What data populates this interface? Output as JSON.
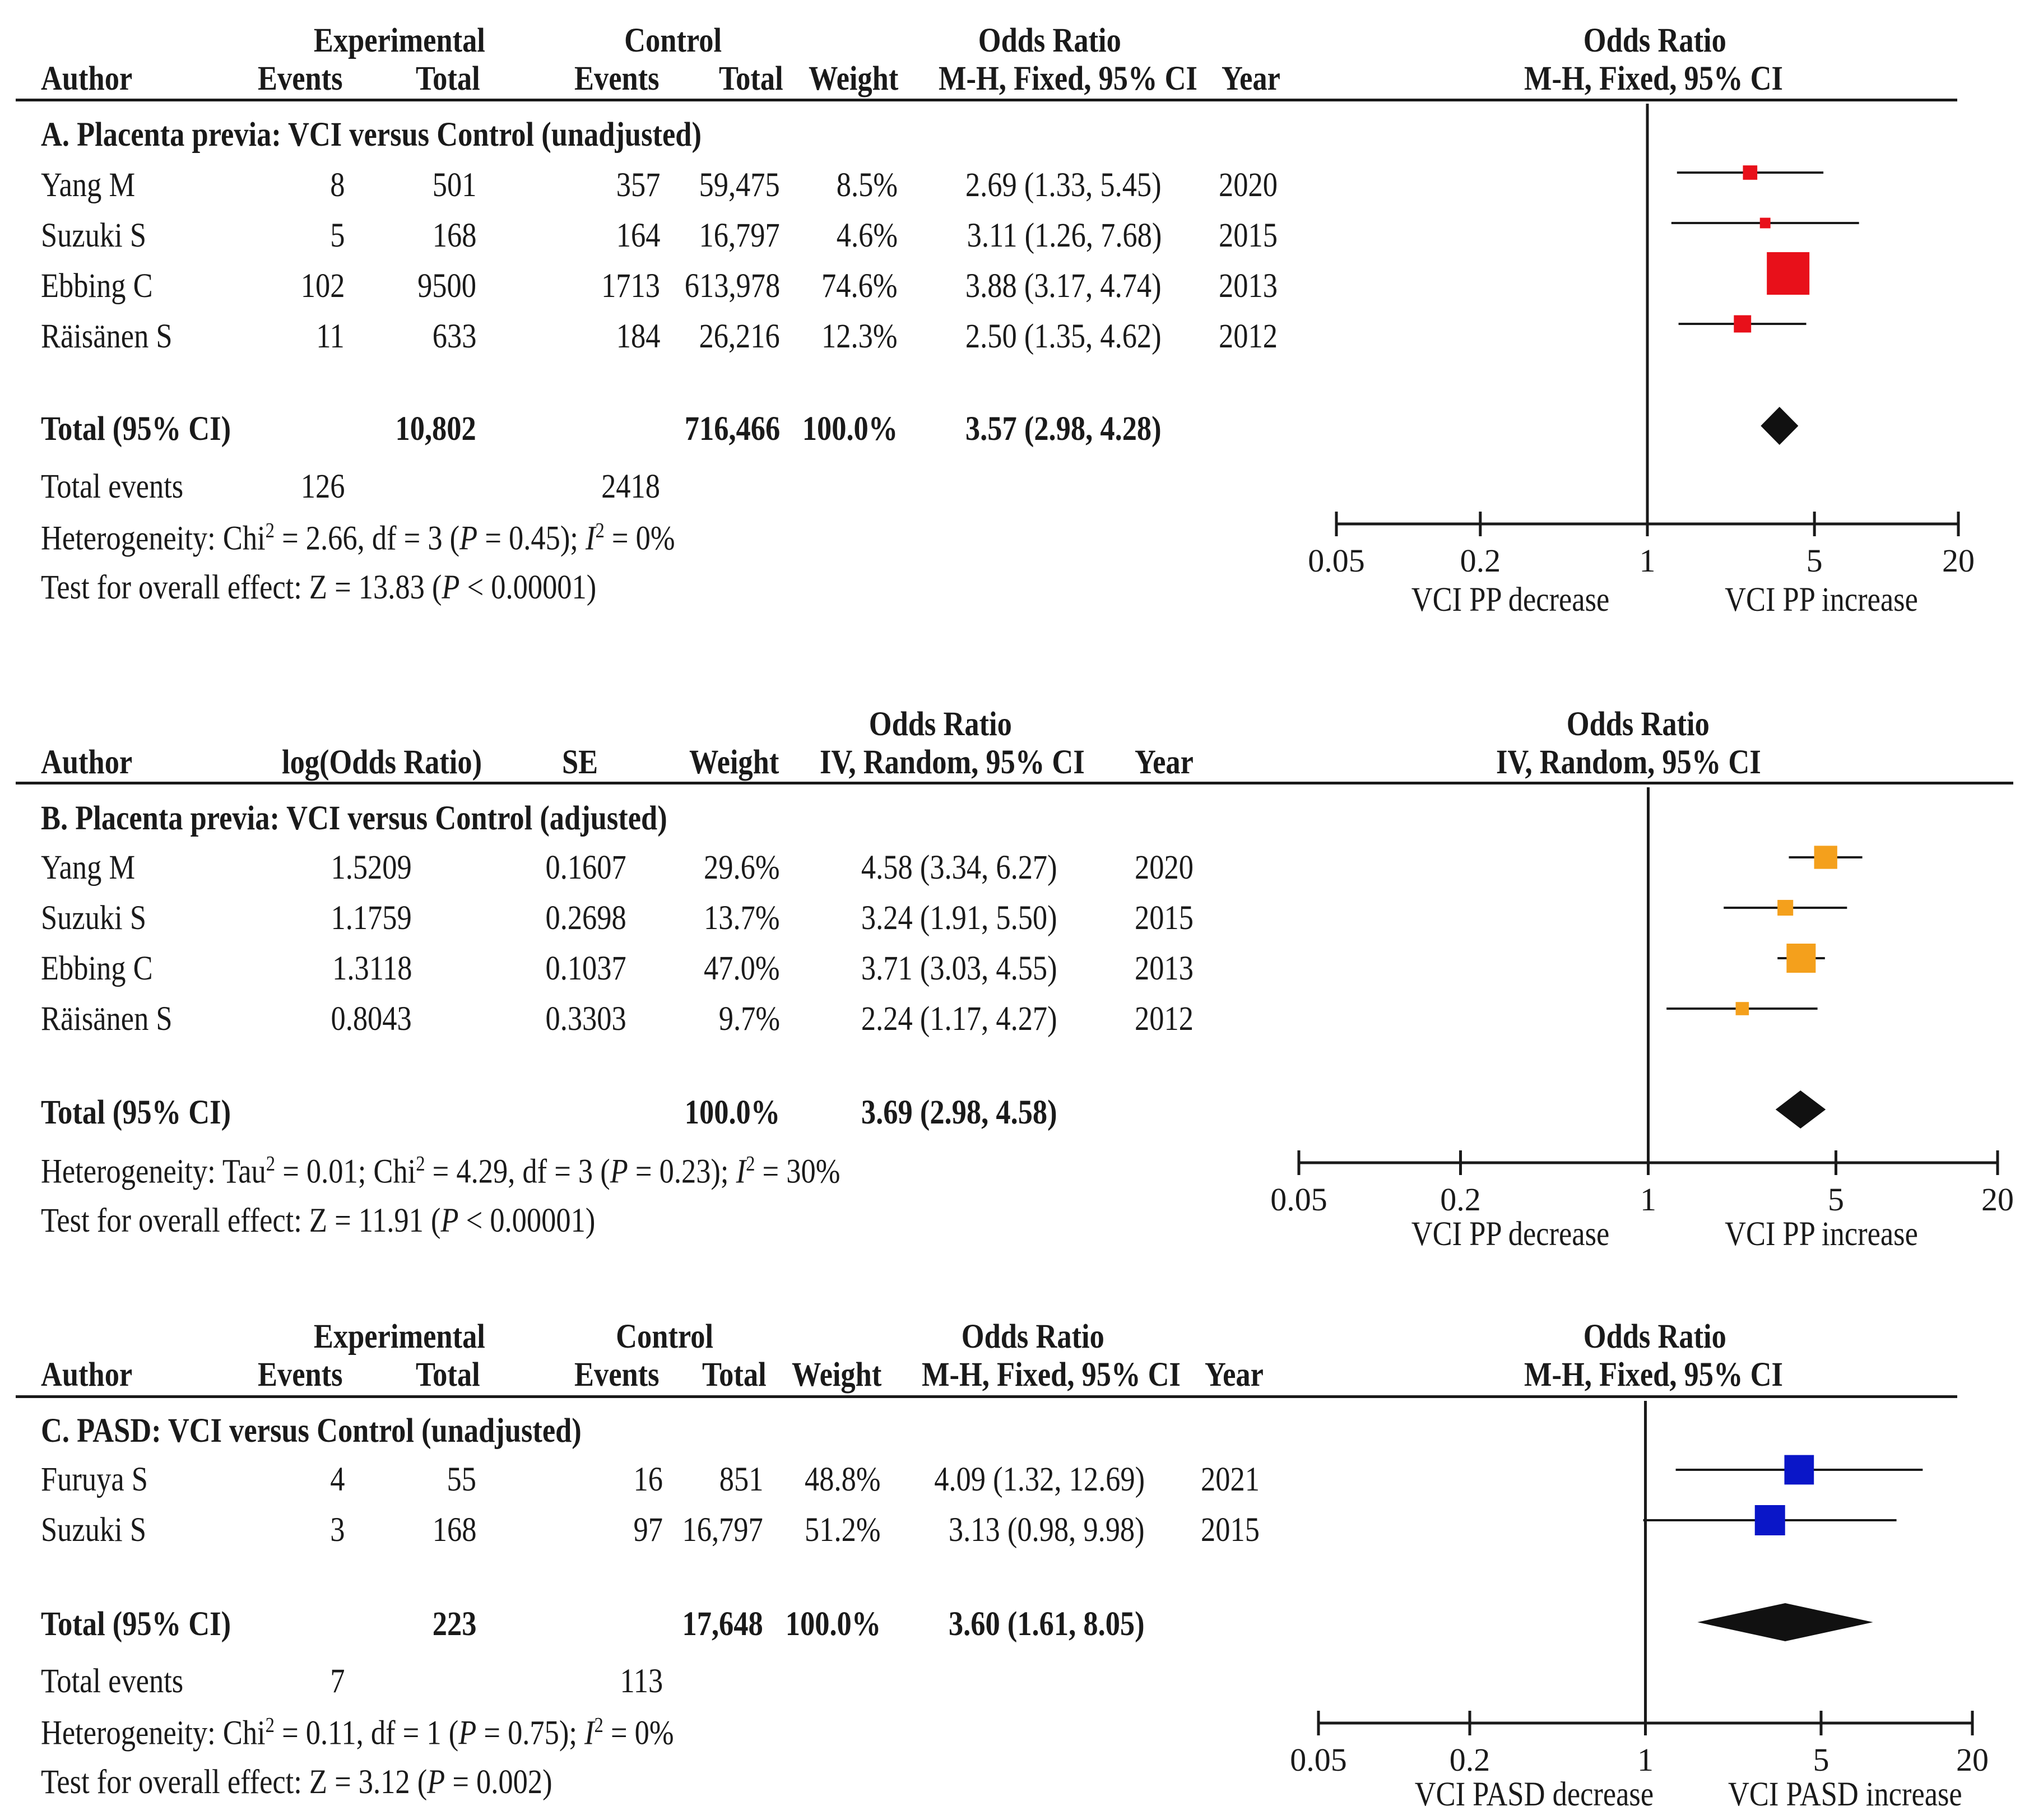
{
  "chart_data": [
    {
      "type": "forest",
      "id": "A",
      "subgroup_title": "A. Placenta previa: VCI versus Control (unadjusted)",
      "columns": {
        "author": "Author",
        "experimental": "Experimental",
        "control": "Control",
        "events": "Events",
        "total": "Total",
        "weight": "Weight",
        "or_top": "Odds Ratio",
        "or_bottom": "M-H, Fixed, 95% CI",
        "year": "Year"
      },
      "plot_header_top": "Odds Ratio",
      "plot_header_bottom": "M-H, Fixed, 95% CI",
      "color": "#e8101a",
      "studies": [
        {
          "author": "Yang M",
          "exp_events": "8",
          "exp_total": "501",
          "ctrl_events": "357",
          "ctrl_total": "59,475",
          "weight_label": "8.5%",
          "or_label": "2.69 (1.33, 5.45)",
          "year": "2020",
          "or": 2.69,
          "lo": 1.33,
          "hi": 5.45,
          "weight": 8.5
        },
        {
          "author": "Suzuki S",
          "exp_events": "5",
          "exp_total": "168",
          "ctrl_events": "164",
          "ctrl_total": "16,797",
          "weight_label": "4.6%",
          "or_label": "3.11 (1.26, 7.68)",
          "year": "2015",
          "or": 3.11,
          "lo": 1.26,
          "hi": 7.68,
          "weight": 4.6
        },
        {
          "author": "Ebbing C",
          "exp_events": "102",
          "exp_total": "9500",
          "ctrl_events": "1713",
          "ctrl_total": "613,978",
          "weight_label": "74.6%",
          "or_label": "3.88 (3.17, 4.74)",
          "year": "2013",
          "or": 3.88,
          "lo": 3.17,
          "hi": 4.74,
          "weight": 74.6
        },
        {
          "author": "Räisänen S",
          "exp_events": "11",
          "exp_total": "633",
          "ctrl_events": "184",
          "ctrl_total": "26,216",
          "weight_label": "12.3%",
          "or_label": "2.50 (1.35, 4.62)",
          "year": "2012",
          "or": 2.5,
          "lo": 1.35,
          "hi": 4.62,
          "weight": 12.3
        }
      ],
      "total": {
        "label": "Total (95% CI)",
        "exp_total": "10,802",
        "ctrl_total": "716,466",
        "weight": "100.0%",
        "or_label": "3.57 (2.98, 4.28)",
        "or": 3.57,
        "lo": 2.98,
        "hi": 4.28
      },
      "total_events": {
        "label": "Total events",
        "exp": "126",
        "ctrl": "2418"
      },
      "heterogeneity": {
        "prefix": "Heterogeneity: Chi",
        "sup": "2",
        "mid": " = 2.66, df = 3 (",
        "p_label": "P",
        "mid2": " = 0.45); ",
        "i_label": "I",
        "i_sup": "2",
        "end": " = 0%"
      },
      "overall": {
        "prefix": "Test for overall effect: Z = 13.83 (",
        "p_label": "P",
        "end": " < 0.00001)"
      },
      "axis": {
        "ticks": [
          0.05,
          0.2,
          1,
          5,
          20
        ],
        "tick_labels": [
          "0.05",
          "0.2",
          "1",
          "5",
          "20"
        ],
        "xmin": 0.05,
        "xmax": 20,
        "scale": "log"
      },
      "left_label": "VCI PP decrease",
      "right_label": "VCI PP increase"
    },
    {
      "type": "forest",
      "id": "B",
      "subgroup_title": "B. Placenta previa: VCI versus Control (adjusted)",
      "columns": {
        "author": "Author",
        "log_or": "log(Odds Ratio)",
        "se": "SE",
        "weight": "Weight",
        "or_top": "Odds Ratio",
        "or_bottom": "IV, Random, 95% CI",
        "year": "Year"
      },
      "plot_header_top": "Odds Ratio",
      "plot_header_bottom": "IV, Random, 95% CI",
      "color": "#f4a01c",
      "studies": [
        {
          "author": "Yang M",
          "log_or": "1.5209",
          "se": "0.1607",
          "weight_label": "29.6%",
          "or_label": "4.58 (3.34, 6.27)",
          "year": "2020",
          "or": 4.58,
          "lo": 3.34,
          "hi": 6.27,
          "weight": 29.6
        },
        {
          "author": "Suzuki S",
          "log_or": "1.1759",
          "se": "0.2698",
          "weight_label": "13.7%",
          "or_label": "3.24 (1.91, 5.50)",
          "year": "2015",
          "or": 3.24,
          "lo": 1.91,
          "hi": 5.5,
          "weight": 13.7
        },
        {
          "author": "Ebbing C",
          "log_or": "1.3118",
          "se": "0.1037",
          "weight_label": "47.0%",
          "or_label": "3.71 (3.03, 4.55)",
          "year": "2013",
          "or": 3.71,
          "lo": 3.03,
          "hi": 4.55,
          "weight": 47.0
        },
        {
          "author": "Räisänen S",
          "log_or": "0.8043",
          "se": "0.3303",
          "weight_label": "9.7%",
          "or_label": "2.24 (1.17, 4.27)",
          "year": "2012",
          "or": 2.24,
          "lo": 1.17,
          "hi": 4.27,
          "weight": 9.7
        }
      ],
      "total": {
        "label": "Total (95% CI)",
        "weight": "100.0%",
        "or_label": "3.69 (2.98, 4.58)",
        "or": 3.69,
        "lo": 2.98,
        "hi": 4.58
      },
      "heterogeneity": {
        "prefix": "Heterogeneity: Tau",
        "sup": "2",
        "mid_a": " = 0.01; Chi",
        "sup2": "2",
        "mid": " = 4.29, df = 3 (",
        "p_label": "P",
        "mid2": " = 0.23); ",
        "i_label": "I",
        "i_sup": "2",
        "end": " = 30%"
      },
      "overall": {
        "prefix": "Test for overall effect: Z = 11.91 (",
        "p_label": "P",
        "end": " < 0.00001)"
      },
      "axis": {
        "ticks": [
          0.05,
          0.2,
          1,
          5,
          20
        ],
        "tick_labels": [
          "0.05",
          "0.2",
          "1",
          "5",
          "20"
        ],
        "xmin": 0.05,
        "xmax": 20,
        "scale": "log"
      },
      "left_label": "VCI PP decrease",
      "right_label": "VCI PP increase"
    },
    {
      "type": "forest",
      "id": "C",
      "subgroup_title": "C. PASD: VCI versus Control (unadjusted)",
      "columns": {
        "author": "Author",
        "experimental": "Experimental",
        "control": "Control",
        "events": "Events",
        "total": "Total",
        "weight": "Weight",
        "or_top": "Odds Ratio",
        "or_bottom": "M-H, Fixed, 95% CI",
        "year": "Year"
      },
      "plot_header_top": "Odds Ratio",
      "plot_header_bottom": "M-H, Fixed, 95% CI",
      "color": "#0a16c8",
      "studies": [
        {
          "author": "Furuya S",
          "exp_events": "4",
          "exp_total": "55",
          "ctrl_events": "16",
          "ctrl_total": "851",
          "weight_label": "48.8%",
          "or_label": "4.09 (1.32, 12.69)",
          "year": "2021",
          "or": 4.09,
          "lo": 1.32,
          "hi": 12.69,
          "weight": 48.8
        },
        {
          "author": "Suzuki S",
          "exp_events": "3",
          "exp_total": "168",
          "ctrl_events": "97",
          "ctrl_total": "16,797",
          "weight_label": "51.2%",
          "or_label": "3.13 (0.98, 9.98)",
          "year": "2015",
          "or": 3.13,
          "lo": 0.98,
          "hi": 9.98,
          "weight": 51.2
        }
      ],
      "total": {
        "label": "Total (95% CI)",
        "exp_total": "223",
        "ctrl_total": "17,648",
        "weight": "100.0%",
        "or_label": "3.60 (1.61, 8.05)",
        "or": 3.6,
        "lo": 1.61,
        "hi": 8.05
      },
      "total_events": {
        "label": "Total events",
        "exp": "7",
        "ctrl": "113"
      },
      "heterogeneity": {
        "prefix": "Heterogeneity: Chi",
        "sup": "2",
        "mid": " = 0.11, df = 1 (",
        "p_label": "P",
        "mid2": " = 0.75); ",
        "i_label": "I",
        "i_sup": "2",
        "end": " = 0%"
      },
      "overall": {
        "prefix": "Test for overall effect: Z = 3.12 (",
        "p_label": "P",
        "end": " = 0.002)"
      },
      "axis": {
        "ticks": [
          0.05,
          0.2,
          1,
          5,
          20
        ],
        "tick_labels": [
          "0.05",
          "0.2",
          "1",
          "5",
          "20"
        ],
        "xmin": 0.05,
        "xmax": 20,
        "scale": "log"
      },
      "left_label": "VCI PASD decrease",
      "right_label": "VCI PASD increase"
    }
  ]
}
